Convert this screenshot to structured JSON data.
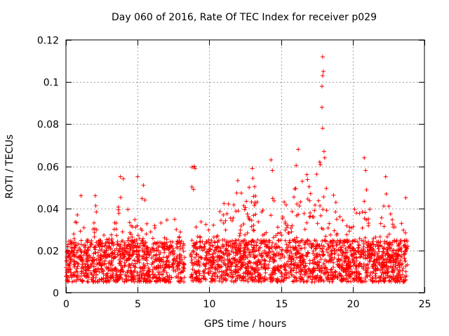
{
  "chart_data": {
    "type": "scatter",
    "title": "Day 060 of 2016, Rate Of TEC Index for receiver p029",
    "xlabel": "GPS time / hours",
    "ylabel": "ROTI / TECUs",
    "xlim": [
      0,
      25
    ],
    "ylim": [
      0,
      0.12
    ],
    "x_ticks": [
      0,
      5,
      10,
      15,
      20,
      25
    ],
    "y_ticks": [
      0,
      0.02,
      0.04,
      0.06,
      0.08,
      0.1,
      0.12
    ],
    "grid": true,
    "marker": "+",
    "marker_color": "#ff0000",
    "data_gap_hours": [
      8.3,
      8.7
    ],
    "point_count_approx": 2880,
    "baseline_band": [
      0.005,
      0.025
    ],
    "notable_points": [
      {
        "x": 17.9,
        "y": 0.112
      },
      {
        "x": 17.95,
        "y": 0.105
      },
      {
        "x": 17.9,
        "y": 0.103
      },
      {
        "x": 17.85,
        "y": 0.098
      },
      {
        "x": 17.85,
        "y": 0.088
      },
      {
        "x": 17.9,
        "y": 0.078
      },
      {
        "x": 16.2,
        "y": 0.068
      },
      {
        "x": 18.0,
        "y": 0.067
      },
      {
        "x": 18.05,
        "y": 0.064
      },
      {
        "x": 14.3,
        "y": 0.063
      },
      {
        "x": 20.8,
        "y": 0.064
      },
      {
        "x": 17.7,
        "y": 0.062
      },
      {
        "x": 8.95,
        "y": 0.06
      },
      {
        "x": 9.0,
        "y": 0.059
      },
      {
        "x": 13.0,
        "y": 0.059
      },
      {
        "x": 14.4,
        "y": 0.058
      },
      {
        "x": 20.9,
        "y": 0.058
      },
      {
        "x": 16.8,
        "y": 0.056
      },
      {
        "x": 3.8,
        "y": 0.055
      },
      {
        "x": 4.0,
        "y": 0.054
      },
      {
        "x": 5.0,
        "y": 0.055
      },
      {
        "x": 22.3,
        "y": 0.055
      },
      {
        "x": 5.4,
        "y": 0.051
      },
      {
        "x": 8.9,
        "y": 0.049
      },
      {
        "x": 23.7,
        "y": 0.045
      },
      {
        "x": 1.05,
        "y": 0.046
      },
      {
        "x": 2.05,
        "y": 0.046
      }
    ],
    "activity_envelope": [
      [
        0.0,
        0.02
      ],
      [
        0.4,
        0.026
      ],
      [
        0.7,
        0.036
      ],
      [
        0.9,
        0.045
      ],
      [
        1.1,
        0.04
      ],
      [
        1.5,
        0.025
      ],
      [
        2.0,
        0.045
      ],
      [
        2.3,
        0.032
      ],
      [
        3.0,
        0.028
      ],
      [
        3.5,
        0.035
      ],
      [
        3.9,
        0.054
      ],
      [
        4.3,
        0.045
      ],
      [
        4.6,
        0.03
      ],
      [
        5.0,
        0.052
      ],
      [
        5.4,
        0.05
      ],
      [
        5.8,
        0.03
      ],
      [
        6.5,
        0.035
      ],
      [
        7.0,
        0.038
      ],
      [
        7.5,
        0.04
      ],
      [
        8.0,
        0.03
      ],
      [
        8.2,
        0.025
      ],
      [
        8.8,
        0.06
      ],
      [
        9.1,
        0.03
      ],
      [
        9.5,
        0.04
      ],
      [
        10.0,
        0.03
      ],
      [
        10.5,
        0.035
      ],
      [
        11.0,
        0.045
      ],
      [
        11.5,
        0.05
      ],
      [
        12.0,
        0.055
      ],
      [
        12.5,
        0.045
      ],
      [
        13.0,
        0.058
      ],
      [
        13.5,
        0.04
      ],
      [
        14.0,
        0.045
      ],
      [
        14.4,
        0.062
      ],
      [
        14.8,
        0.04
      ],
      [
        15.3,
        0.045
      ],
      [
        15.8,
        0.052
      ],
      [
        16.2,
        0.066
      ],
      [
        16.6,
        0.06
      ],
      [
        17.0,
        0.05
      ],
      [
        17.5,
        0.058
      ],
      [
        17.9,
        0.068
      ],
      [
        18.3,
        0.055
      ],
      [
        18.7,
        0.05
      ],
      [
        19.0,
        0.04
      ],
      [
        19.5,
        0.035
      ],
      [
        20.0,
        0.04
      ],
      [
        20.5,
        0.045
      ],
      [
        20.85,
        0.064
      ],
      [
        21.2,
        0.04
      ],
      [
        21.6,
        0.035
      ],
      [
        22.0,
        0.035
      ],
      [
        22.4,
        0.055
      ],
      [
        22.8,
        0.035
      ],
      [
        23.2,
        0.03
      ],
      [
        23.6,
        0.045
      ],
      [
        23.8,
        0.04
      ]
    ]
  }
}
